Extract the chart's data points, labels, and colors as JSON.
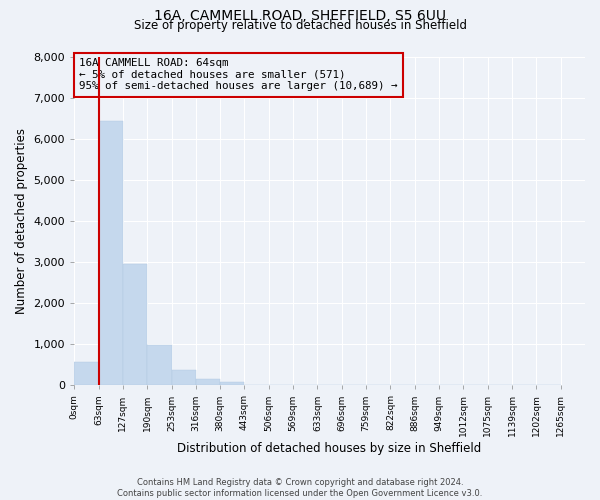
{
  "title_line1": "16A, CAMMELL ROAD, SHEFFIELD, S5 6UU",
  "title_line2": "Size of property relative to detached houses in Sheffield",
  "xlabel": "Distribution of detached houses by size in Sheffield",
  "ylabel": "Number of detached properties",
  "bin_labels": [
    "0sqm",
    "63sqm",
    "127sqm",
    "190sqm",
    "253sqm",
    "316sqm",
    "380sqm",
    "443sqm",
    "506sqm",
    "569sqm",
    "633sqm",
    "696sqm",
    "759sqm",
    "822sqm",
    "886sqm",
    "949sqm",
    "1012sqm",
    "1075sqm",
    "1139sqm",
    "1202sqm",
    "1265sqm"
  ],
  "bar_heights": [
    571,
    6440,
    2940,
    990,
    380,
    155,
    75,
    0,
    0,
    0,
    0,
    0,
    0,
    0,
    0,
    0,
    0,
    0,
    0,
    0
  ],
  "bar_color": "#c5d8ed",
  "bar_edge_color": "#b0c8e0",
  "background_color": "#eef2f8",
  "grid_color": "#ffffff",
  "annotation_box_color": "#cc0000",
  "annotation_text_line1": "16A CAMMELL ROAD: 64sqm",
  "annotation_text_line2": "← 5% of detached houses are smaller (571)",
  "annotation_text_line3": "95% of semi-detached houses are larger (10,689) →",
  "red_line_bin_index": 1,
  "ylim": [
    0,
    8000
  ],
  "yticks": [
    0,
    1000,
    2000,
    3000,
    4000,
    5000,
    6000,
    7000,
    8000
  ],
  "footer_line1": "Contains HM Land Registry data © Crown copyright and database right 2024.",
  "footer_line2": "Contains public sector information licensed under the Open Government Licence v3.0."
}
